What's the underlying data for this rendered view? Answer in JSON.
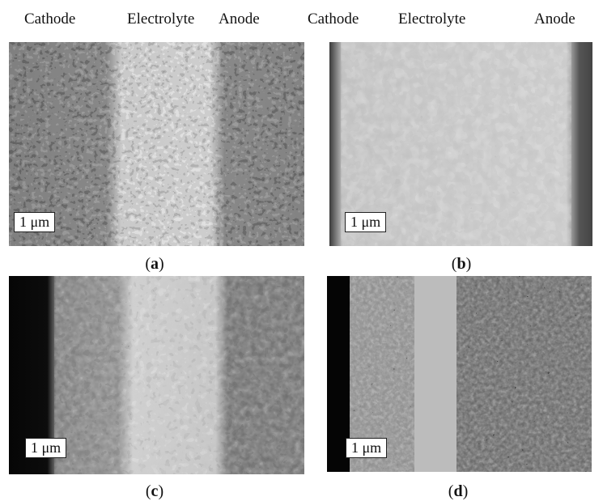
{
  "headers": {
    "left": [
      "Cathode",
      "Electrolyte",
      "Anode"
    ],
    "right": [
      "Cathode",
      "Electrolyte",
      "Anode"
    ]
  },
  "panels": [
    {
      "id": "a",
      "scale_label": "1 μm",
      "caption_open": "(",
      "caption_letter": "a",
      "caption_close": ")"
    },
    {
      "id": "b",
      "scale_label": "1 μm",
      "caption_open": "(",
      "caption_letter": "b",
      "caption_close": ")"
    },
    {
      "id": "c",
      "scale_label": "1 μm",
      "caption_open": "(",
      "caption_letter": "c",
      "caption_close": ")"
    },
    {
      "id": "d",
      "scale_label": "1 μm",
      "caption_open": "(",
      "caption_letter": "d",
      "caption_close": ")"
    }
  ],
  "colors": {
    "electrolyte": "#d8d8d8",
    "electrode_light": "#9a9a9a",
    "electrode_dark": "#3a3a3a",
    "pore": "#0a0a0a",
    "background": "#ffffff"
  }
}
